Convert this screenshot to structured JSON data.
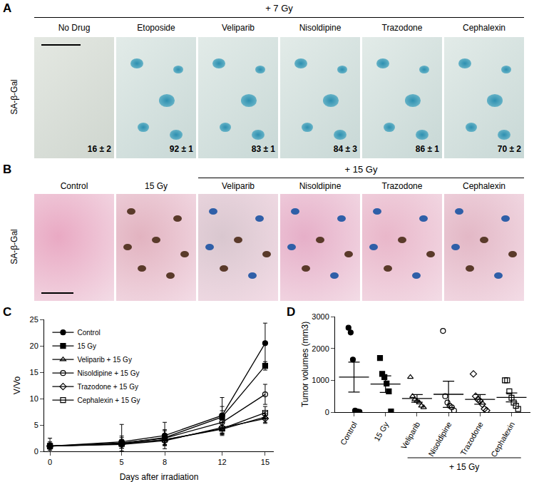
{
  "panels": {
    "A": {
      "label": "A",
      "header": "+ 7 Gy",
      "row_label": "SA-β-Gal",
      "columns": [
        {
          "title": "No Drug",
          "value": "16 ± 2"
        },
        {
          "title": "Etoposide",
          "value": "92 ± 1"
        },
        {
          "title": "Veliparib",
          "value": "83 ± 1"
        },
        {
          "title": "Nisoldipine",
          "value": "84 ± 3"
        },
        {
          "title": "Trazodone",
          "value": "86 ± 1"
        },
        {
          "title": "Cephalexin",
          "value": "70 ± 2"
        }
      ]
    },
    "B": {
      "label": "B",
      "row_label": "SA-β-Gal",
      "columns": [
        "Control",
        "15 Gy",
        "Veliparib",
        "Nisoldipine",
        "Trazodone",
        "Cephalexin"
      ],
      "group_header": "+ 15 Gy",
      "group_columns": [
        "Veliparib",
        "Nisoldipine",
        "Trazodone",
        "Cephalexin"
      ]
    }
  },
  "chart_data": [
    {
      "panel": "C",
      "type": "line",
      "x": [
        0,
        5,
        8,
        12,
        15
      ],
      "xlabel": "Days after irradiation",
      "ylabel": "V/Vo",
      "xlim": [
        -0.4,
        15.6
      ],
      "xticks": [
        0,
        5,
        8,
        12,
        15
      ],
      "ylim": [
        0,
        25
      ],
      "yticks": [
        0,
        5,
        10,
        15,
        20,
        25
      ],
      "legend": "top-left",
      "series": [
        {
          "name": "Control",
          "color": "#000000",
          "marker": "circle",
          "values": [
            1,
            1.8,
            3.0,
            6.8,
            20.5
          ],
          "errors": [
            1.5,
            3.3,
            2.5,
            3.4,
            3.8
          ]
        },
        {
          "name": "15 Gy",
          "color": "#000000",
          "marker": "square",
          "values": [
            1,
            1.5,
            2.6,
            6.5,
            16.2
          ],
          "errors": [
            0.8,
            1.4,
            1.5,
            2.0,
            0.8
          ]
        },
        {
          "name": "Veliparib + 15 Gy",
          "color": "#000000",
          "marker": "triangle-open",
          "values": [
            1,
            1.4,
            2.2,
            4.2,
            6.5
          ],
          "errors": [
            0.4,
            0.8,
            0.9,
            1.2,
            1.0
          ]
        },
        {
          "name": "Nisoldipine + 15 Gy",
          "color": "#000000",
          "marker": "circle-open",
          "values": [
            1,
            1.6,
            2.5,
            5.5,
            10.8
          ],
          "errors": [
            0.6,
            1.0,
            1.4,
            2.2,
            1.9
          ]
        },
        {
          "name": "Trazodone + 15 Gy",
          "color": "#000000",
          "marker": "diamond-open",
          "values": [
            1,
            1.3,
            2.0,
            4.5,
            6.2
          ],
          "errors": [
            0.4,
            0.7,
            0.8,
            1.0,
            0.9
          ]
        },
        {
          "name": "Cephalexin + 15 Gy",
          "color": "#000000",
          "marker": "square-open",
          "values": [
            1,
            1.4,
            2.2,
            4.3,
            7.3
          ],
          "errors": [
            0.4,
            0.8,
            0.9,
            1.1,
            1.2
          ]
        }
      ]
    },
    {
      "panel": "D",
      "type": "scatter",
      "categories": [
        "Control",
        "15 Gy",
        "Veliparib",
        "Nisoldipine",
        "Trazodone",
        "Cephalexin"
      ],
      "ylabel": "Tumor volumes (mm3)",
      "ylim": [
        0,
        3000
      ],
      "yticks": [
        0,
        1000,
        2000,
        3000
      ],
      "group_label": "+ 15 Gy",
      "group_categories": [
        "Veliparib",
        "Nisoldipine",
        "Trazodone",
        "Cephalexin"
      ],
      "groups": [
        {
          "category": "Control",
          "color": "#000000",
          "marker": "circle",
          "values": [
            2650,
            2500,
            1650,
            50,
            20,
            10
          ],
          "mean": 1100,
          "error": 470
        },
        {
          "category": "15 Gy",
          "color": "#000000",
          "marker": "square",
          "values": [
            1700,
            1200,
            1100,
            900,
            650,
            20
          ],
          "mean": 880,
          "error": 260
        },
        {
          "category": "Veliparib",
          "color": "#000000",
          "marker": "triangle-open",
          "values": [
            1100,
            500,
            400,
            350,
            300,
            200,
            150
          ],
          "mean": 430,
          "error": 120
        },
        {
          "category": "Nisoldipine",
          "color": "#000000",
          "marker": "circle-open",
          "values": [
            2550,
            500,
            300,
            200,
            150,
            50
          ],
          "mean": 560,
          "error": 410
        },
        {
          "category": "Trazodone",
          "color": "#000000",
          "marker": "diamond-open",
          "values": [
            1200,
            500,
            400,
            350,
            250,
            100,
            50
          ],
          "mean": 400,
          "error": 150
        },
        {
          "category": "Cephalexin",
          "color": "#000000",
          "marker": "square-open",
          "values": [
            1000,
            1000,
            650,
            450,
            300,
            200,
            100
          ],
          "mean": 460,
          "error": 140
        }
      ]
    }
  ]
}
